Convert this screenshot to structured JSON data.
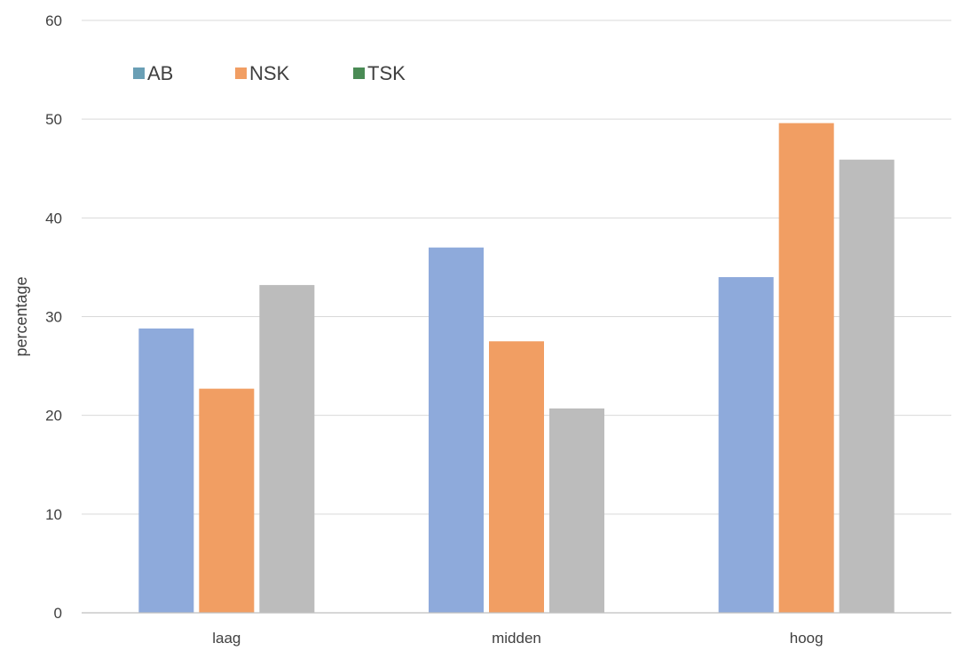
{
  "chart_data": {
    "type": "bar",
    "categories": [
      "laag",
      "midden",
      "hoog"
    ],
    "series": [
      {
        "name": "AB",
        "values": [
          28.8,
          37.0,
          34.0
        ],
        "bar_color": "#8eaadb",
        "legend_color": "#6a9fb5"
      },
      {
        "name": "NSK",
        "values": [
          22.7,
          27.5,
          49.6
        ],
        "bar_color": "#f19e63",
        "legend_color": "#f19e63"
      },
      {
        "name": "TSK",
        "values": [
          33.2,
          20.7,
          45.9
        ],
        "bar_color": "#bcbcbc",
        "legend_color": "#4a8b55"
      }
    ],
    "y_ticks": [
      "0",
      "10",
      "20",
      "30",
      "40",
      "50",
      "60"
    ],
    "ylim": [
      0,
      60
    ],
    "ylabel": "percentage",
    "xlabel": "",
    "grid": true,
    "legend_position": "top-left"
  }
}
